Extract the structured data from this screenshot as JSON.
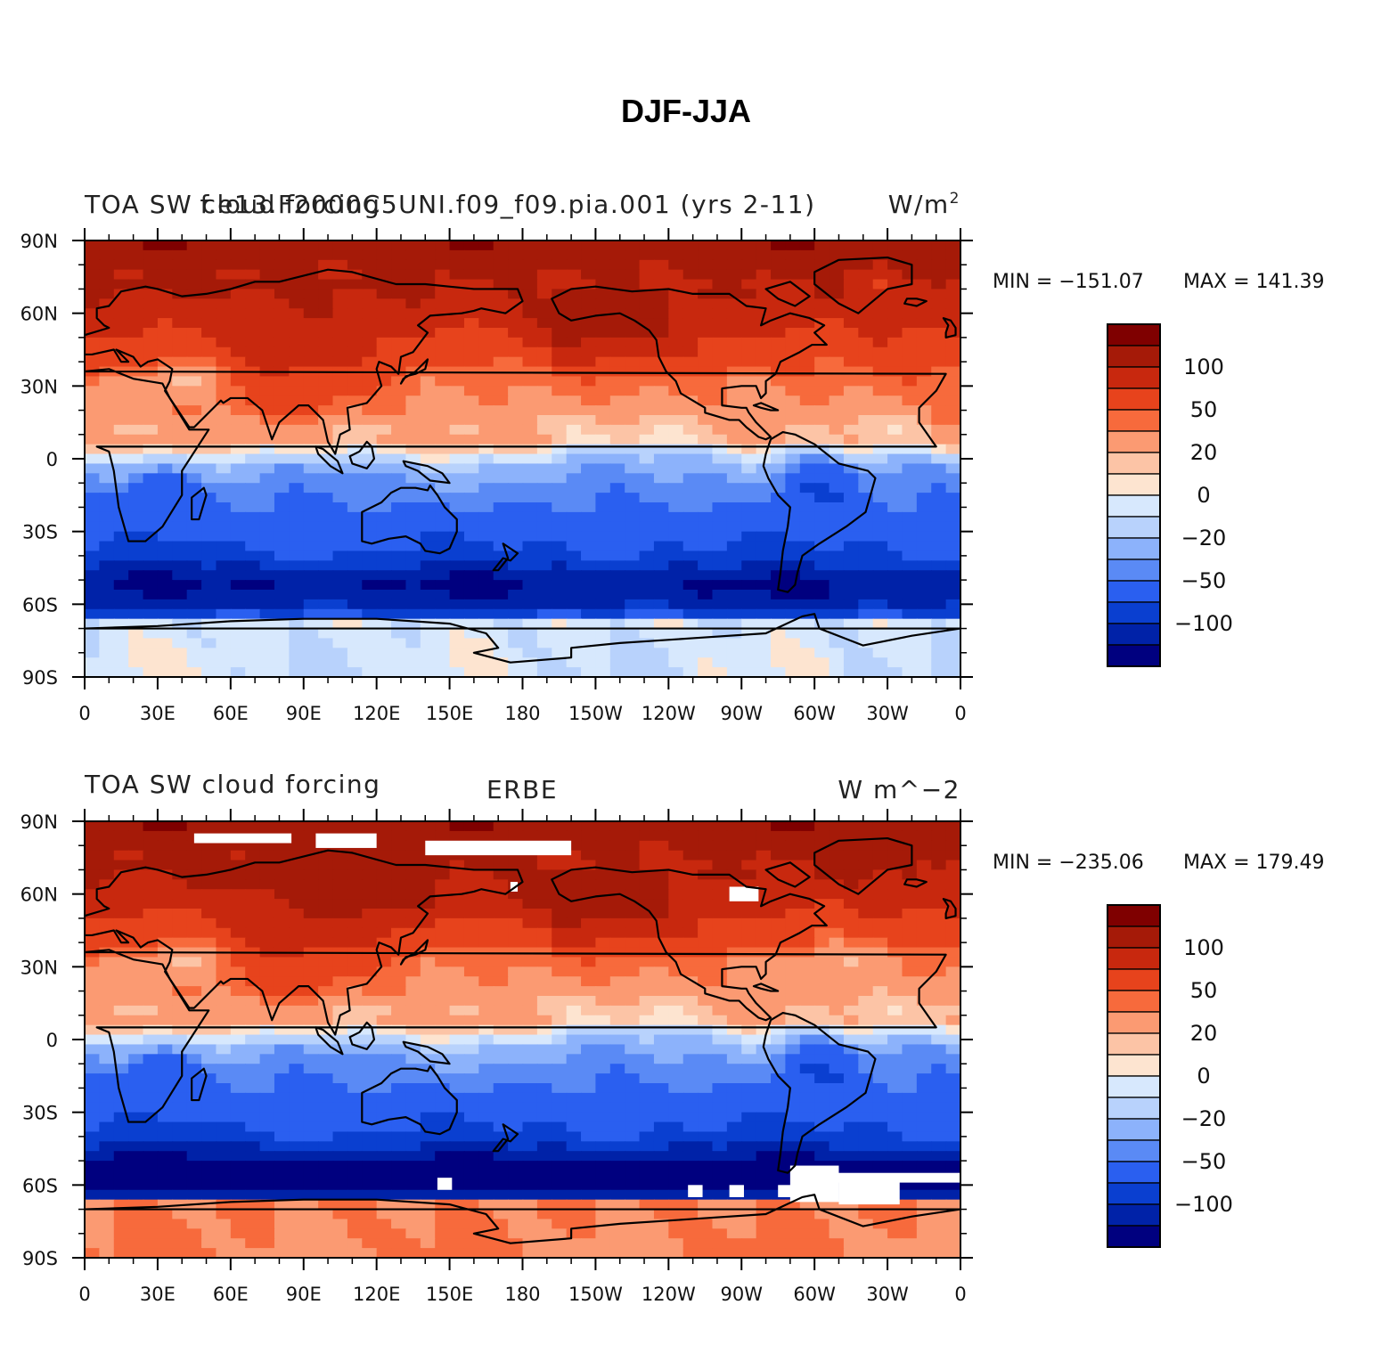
{
  "figure": {
    "title": "DJF-JJA"
  },
  "palette": [
    "#00007f",
    "#0022a8",
    "#0a3fd0",
    "#2a5ff0",
    "#5a8af5",
    "#8cb2fb",
    "#b8d2fc",
    "#d7e8fd",
    "#fde4d0",
    "#fcc4a6",
    "#fb9a72",
    "#f76a3c",
    "#e7431c",
    "#c8280e",
    "#a51a08",
    "#7f0000"
  ],
  "chart_data": [
    {
      "type": "heatmap",
      "panel": "model",
      "title_left": "TOA SW cloud forcing",
      "title_center": "f.e13.F2000C5UNI.f09_f09.pia.001 (yrs 2-11)",
      "units": "W/m",
      "units_sup": "2",
      "min_label": "MIN = −151.07",
      "max_label": "MAX = 141.39",
      "min": -151.07,
      "max": 141.39,
      "colorbar_ticks": [
        "100",
        "50",
        "20",
        "0",
        "−20",
        "−50",
        "−100"
      ],
      "x_ticks": [
        "0",
        "30E",
        "60E",
        "90E",
        "120E",
        "150E",
        "180",
        "150W",
        "120W",
        "90W",
        "60W",
        "30W",
        "0"
      ],
      "y_ticks": [
        "90N",
        "60N",
        "30N",
        "0",
        "30S",
        "60S",
        "90S"
      ],
      "xlim": [
        0,
        360
      ],
      "ylim": [
        -90,
        90
      ]
    },
    {
      "type": "heatmap",
      "panel": "obs",
      "title_left": "TOA SW cloud forcing",
      "title_center": "ERBE",
      "units": "W m^−2",
      "units_sup": "",
      "min_label": "MIN = −235.06",
      "max_label": "MAX = 179.49",
      "min": -235.06,
      "max": 179.49,
      "colorbar_ticks": [
        "100",
        "50",
        "20",
        "0",
        "−20",
        "−50",
        "−100"
      ],
      "x_ticks": [
        "0",
        "30E",
        "60E",
        "90E",
        "120E",
        "150E",
        "180",
        "150W",
        "120W",
        "90W",
        "60W",
        "30W",
        "0"
      ],
      "y_ticks": [
        "90N",
        "60N",
        "30N",
        "0",
        "30S",
        "60S",
        "90S"
      ],
      "xlim": [
        0,
        360
      ],
      "ylim": [
        -90,
        90
      ]
    }
  ]
}
